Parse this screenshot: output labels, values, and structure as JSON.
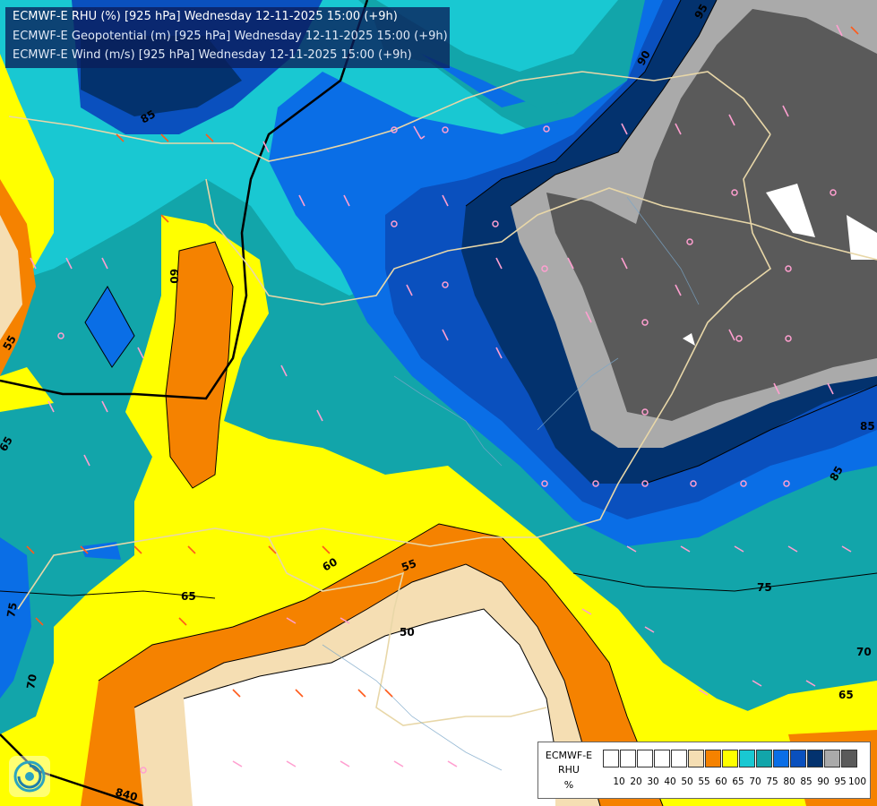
{
  "titles": {
    "line1": "ECMWF-E RHU (%) [925 hPa] Wednesday 12-11-2025 15:00 (+9h)",
    "line2": "ECMWF-E Geopotential (m) [925 hPa] Wednesday 12-11-2025 15:00 (+9h)",
    "line3": "ECMWF-E Wind (m/s) [925 hPa] Wednesday 12-11-2025 15:00 (+9h)"
  },
  "legend": {
    "title1": "ECMWF-E",
    "title2": "RHU",
    "unit": "%",
    "bins": [
      {
        "label": "10",
        "color": "#ffffff"
      },
      {
        "label": "20",
        "color": "#ffffff"
      },
      {
        "label": "30",
        "color": "#ffffff"
      },
      {
        "label": "40",
        "color": "#ffffff"
      },
      {
        "label": "50",
        "color": "#ffffff"
      },
      {
        "label": "55",
        "color": "#f5deb3"
      },
      {
        "label": "60",
        "color": "#f58200"
      },
      {
        "label": "65",
        "color": "#ffff00"
      },
      {
        "label": "70",
        "color": "#19c8d2"
      },
      {
        "label": "75",
        "color": "#12a5aa"
      },
      {
        "label": "80",
        "color": "#0a6ee6"
      },
      {
        "label": "85",
        "color": "#0a50be"
      },
      {
        "label": "90",
        "color": "#03326e"
      },
      {
        "label": "95",
        "color": "#aaaaaa"
      },
      {
        "label": "100",
        "color": "#5a5a5a"
      }
    ]
  },
  "contour_labels": [
    {
      "text": "95",
      "id": "c95"
    },
    {
      "text": "90",
      "id": "c90"
    },
    {
      "text": "85",
      "id": "c85a"
    },
    {
      "text": "85",
      "id": "c85b"
    },
    {
      "text": "60",
      "id": "c60a"
    },
    {
      "text": "60",
      "id": "c60b"
    },
    {
      "text": "55",
      "id": "c55a"
    },
    {
      "text": "55",
      "id": "c55b"
    },
    {
      "text": "65",
      "id": "c65a"
    },
    {
      "text": "65",
      "id": "c65b"
    },
    {
      "text": "65",
      "id": "c65c"
    },
    {
      "text": "70",
      "id": "c70a"
    },
    {
      "text": "70",
      "id": "c70b"
    },
    {
      "text": "75",
      "id": "c75a"
    },
    {
      "text": "75",
      "id": "c75b"
    },
    {
      "text": "50",
      "id": "c50"
    },
    {
      "text": "840",
      "id": "c840"
    }
  ],
  "colors": {
    "white": "#ffffff",
    "tan": "#f5deb3",
    "orange": "#f58200",
    "yellow": "#ffff00",
    "cyan": "#19c8d2",
    "teal": "#12a5aa",
    "blue": "#0a6ee6",
    "darkblue": "#0a50be",
    "navy": "#03326e",
    "lightgray": "#aaaaaa",
    "darkgray": "#5a5a5a"
  }
}
